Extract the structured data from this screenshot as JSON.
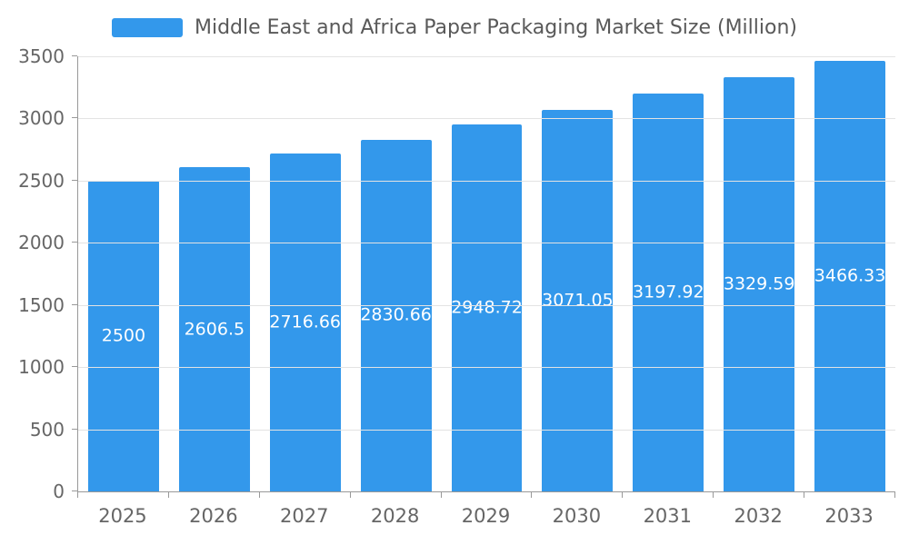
{
  "colors": {
    "bar": "#3398EB",
    "legend_text": "#595959",
    "axis_text": "#666666",
    "axis_line": "#999999",
    "gridline": "#E3E3E3",
    "value_label": "#FFFFFF",
    "background": "#FFFFFF"
  },
  "legend": {
    "label": "Middle East and Africa Paper Packaging Market Size (Million)"
  },
  "chart_data": {
    "type": "bar",
    "title": "Middle East and Africa Paper Packaging Market Size (Million)",
    "categories": [
      "2025",
      "2026",
      "2027",
      "2028",
      "2029",
      "2030",
      "2031",
      "2032",
      "2033"
    ],
    "values": [
      2500,
      2606.5,
      2716.66,
      2830.66,
      2948.72,
      3071.05,
      3197.92,
      3329.59,
      3466.33
    ],
    "value_labels": [
      "2500",
      "2606.5",
      "2716.66",
      "2830.66",
      "2948.72",
      "3071.05",
      "3197.92",
      "3329.59",
      "3466.33"
    ],
    "xlabel": "",
    "ylabel": "",
    "ylim": [
      0,
      3500
    ],
    "y_ticks": [
      "0",
      "500",
      "1000",
      "1500",
      "2000",
      "2500",
      "3000",
      "3500"
    ],
    "grid": true,
    "legend_position": "top"
  }
}
